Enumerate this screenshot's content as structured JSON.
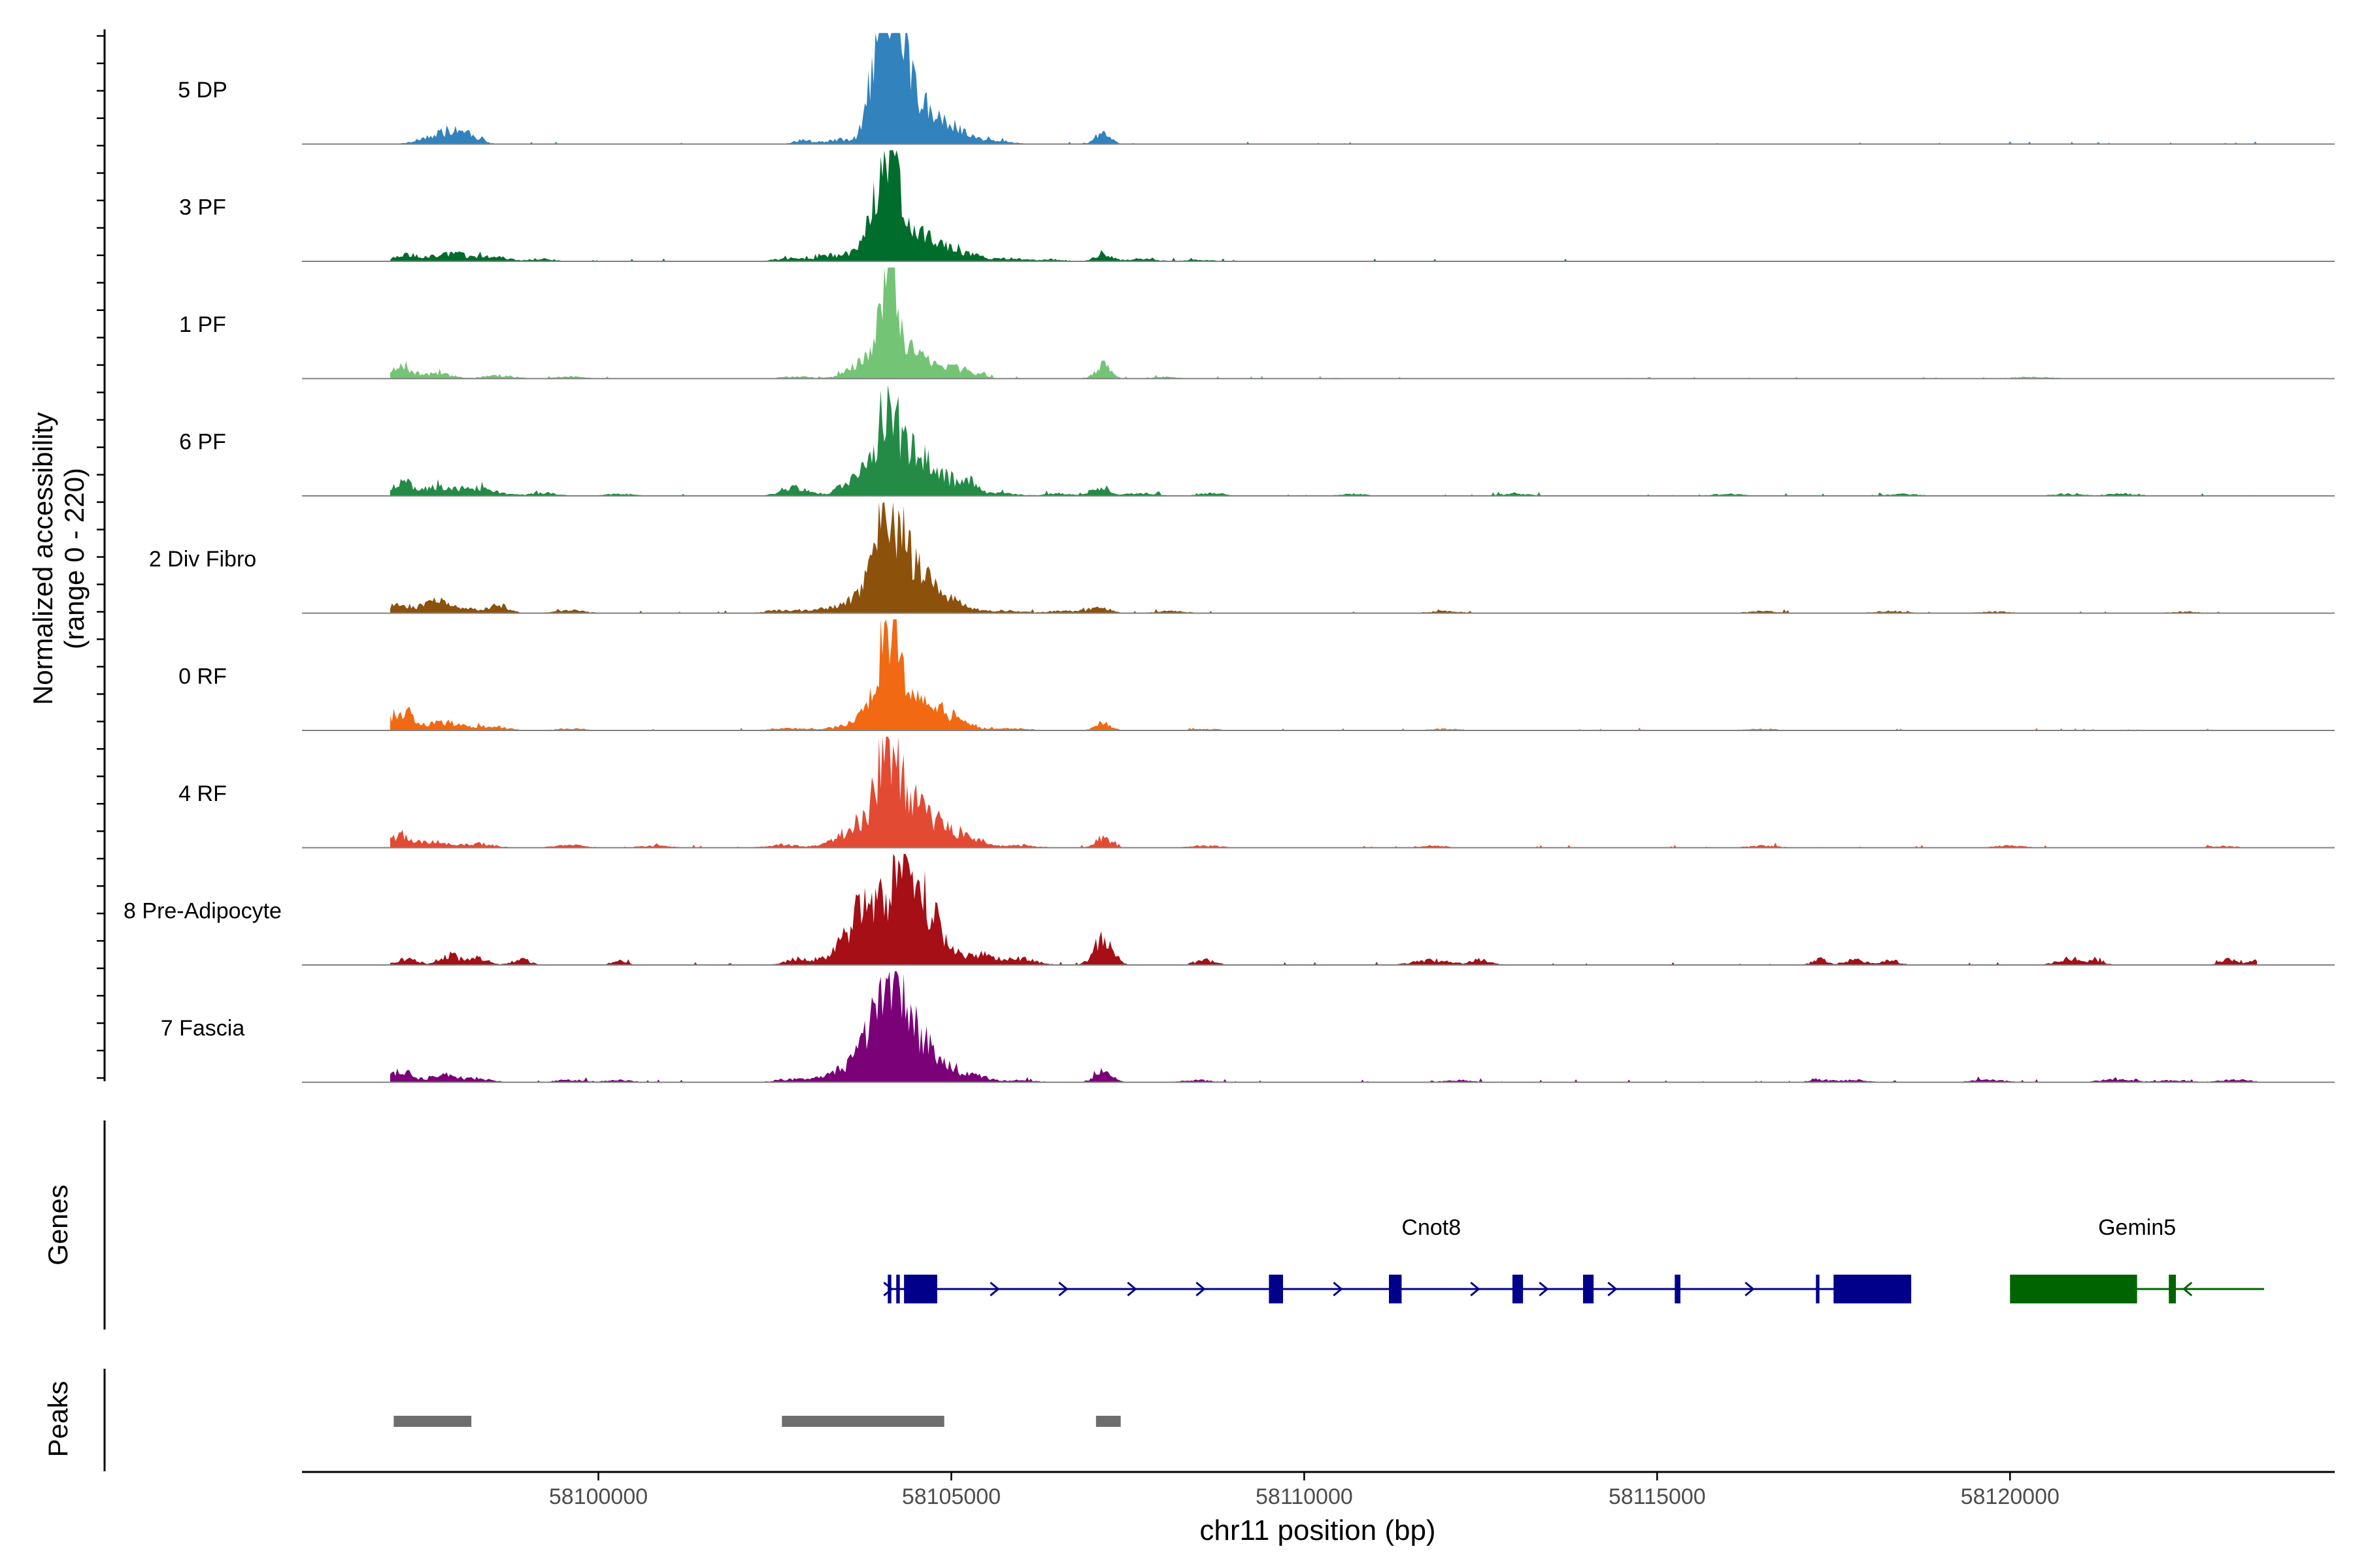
{
  "chart_data": {
    "type": "area",
    "title": "",
    "ylabel_line1": "Normalized accessibility",
    "ylabel_line2": "(range 0 - 220)",
    "ylim": [
      0,
      220
    ],
    "xlabel": "chr11 position (bp)",
    "xlim": [
      58095800,
      58124600
    ],
    "xticks": [
      58100000,
      58105000,
      58110000,
      58115000,
      58120000
    ],
    "xtick_labels": [
      "58100000",
      "58105000",
      "58110000",
      "58115000",
      "58120000"
    ],
    "tracks": [
      {
        "name": "5 DP",
        "color": "#3182bd",
        "peaks": [
          [
            58097800,
            20,
            260
          ],
          [
            58098100,
            14,
            180
          ],
          [
            58102900,
            8,
            120
          ],
          [
            58103400,
            10,
            160
          ],
          [
            58104000,
            140,
            150
          ],
          [
            58104150,
            210,
            170
          ],
          [
            58104450,
            70,
            220
          ],
          [
            58104800,
            35,
            250
          ],
          [
            58105150,
            14,
            200
          ],
          [
            58105700,
            8,
            160
          ],
          [
            58107150,
            24,
            110
          ]
        ]
      },
      {
        "name": "3 PF",
        "color": "#006d2c",
        "peaks": [
          [
            58097300,
            12,
            180
          ],
          [
            58097900,
            16,
            240
          ],
          [
            58098500,
            10,
            200
          ],
          [
            58099200,
            5,
            180
          ],
          [
            58102700,
            6,
            200
          ],
          [
            58103300,
            12,
            220
          ],
          [
            58103900,
            60,
            180
          ],
          [
            58104100,
            175,
            140
          ],
          [
            58104400,
            60,
            200
          ],
          [
            58104750,
            30,
            260
          ],
          [
            58105200,
            12,
            220
          ],
          [
            58105800,
            6,
            200
          ],
          [
            58106400,
            4,
            200
          ],
          [
            58107150,
            14,
            120
          ],
          [
            58107700,
            6,
            180
          ],
          [
            58108500,
            3,
            200
          ]
        ]
      },
      {
        "name": "1 PF",
        "color": "#74c476",
        "peaks": [
          [
            58097200,
            22,
            160
          ],
          [
            58097700,
            10,
            220
          ],
          [
            58098600,
            6,
            220
          ],
          [
            58099600,
            4,
            200
          ],
          [
            58102800,
            4,
            220
          ],
          [
            58103600,
            12,
            180
          ],
          [
            58103900,
            40,
            180
          ],
          [
            58104100,
            185,
            110
          ],
          [
            58104350,
            55,
            180
          ],
          [
            58104750,
            30,
            220
          ],
          [
            58105200,
            14,
            200
          ],
          [
            58107150,
            26,
            110
          ],
          [
            58108000,
            3,
            200
          ],
          [
            58120300,
            3,
            300
          ]
        ]
      },
      {
        "name": "6 PF",
        "color": "#238b45",
        "peaks": [
          [
            58097200,
            26,
            160
          ],
          [
            58097700,
            18,
            220
          ],
          [
            58098300,
            16,
            240
          ],
          [
            58099200,
            6,
            200
          ],
          [
            58100300,
            4,
            200
          ],
          [
            58102800,
            16,
            200
          ],
          [
            58103500,
            16,
            160
          ],
          [
            58103800,
            40,
            180
          ],
          [
            58104100,
            165,
            140
          ],
          [
            58104450,
            80,
            200
          ],
          [
            58104850,
            40,
            160
          ],
          [
            58105250,
            28,
            120
          ],
          [
            58105700,
            6,
            200
          ],
          [
            58106500,
            5,
            200
          ],
          [
            58107100,
            16,
            140
          ],
          [
            58107700,
            6,
            200
          ],
          [
            58108700,
            5,
            200
          ],
          [
            58110700,
            4,
            200
          ],
          [
            58113000,
            4,
            220
          ],
          [
            58116000,
            4,
            200
          ],
          [
            58118500,
            4,
            200
          ],
          [
            58120800,
            4,
            200
          ],
          [
            58121600,
            4,
            240
          ]
        ]
      },
      {
        "name": "2 Div Fibro",
        "color": "#8c510a",
        "peaks": [
          [
            58097200,
            16,
            160
          ],
          [
            58097700,
            24,
            180
          ],
          [
            58098200,
            8,
            200
          ],
          [
            58098600,
            14,
            140
          ],
          [
            58099600,
            6,
            200
          ],
          [
            58102600,
            6,
            220
          ],
          [
            58103200,
            8,
            200
          ],
          [
            58103700,
            30,
            200
          ],
          [
            58104050,
            190,
            150
          ],
          [
            58104300,
            95,
            200
          ],
          [
            58104650,
            50,
            220
          ],
          [
            58105100,
            16,
            220
          ],
          [
            58105800,
            5,
            220
          ],
          [
            58106600,
            5,
            220
          ],
          [
            58107100,
            12,
            140
          ],
          [
            58108100,
            4,
            220
          ],
          [
            58112000,
            4,
            220
          ],
          [
            58116500,
            4,
            220
          ],
          [
            58118300,
            4,
            220
          ],
          [
            58119800,
            3,
            220
          ],
          [
            58122500,
            3,
            220
          ]
        ]
      },
      {
        "name": "0 RF",
        "color": "#f16913",
        "peaks": [
          [
            58097200,
            38,
            150
          ],
          [
            58097800,
            16,
            240
          ],
          [
            58098500,
            8,
            220
          ],
          [
            58099600,
            4,
            200
          ],
          [
            58102700,
            5,
            220
          ],
          [
            58103500,
            8,
            220
          ],
          [
            58103900,
            30,
            200
          ],
          [
            58104120,
            180,
            150
          ],
          [
            58104400,
            55,
            200
          ],
          [
            58104750,
            32,
            220
          ],
          [
            58105150,
            14,
            200
          ],
          [
            58105900,
            4,
            220
          ],
          [
            58107150,
            16,
            110
          ],
          [
            58108600,
            3,
            220
          ],
          [
            58112000,
            3,
            220
          ],
          [
            58116500,
            3,
            220
          ]
        ]
      },
      {
        "name": "4 RF",
        "color": "#e34a33",
        "peaks": [
          [
            58097200,
            26,
            160
          ],
          [
            58097700,
            12,
            200
          ],
          [
            58098300,
            8,
            220
          ],
          [
            58099600,
            5,
            220
          ],
          [
            58100800,
            4,
            220
          ],
          [
            58102600,
            6,
            220
          ],
          [
            58103400,
            14,
            200
          ],
          [
            58103800,
            50,
            200
          ],
          [
            58104100,
            185,
            140
          ],
          [
            58104400,
            80,
            200
          ],
          [
            58104800,
            40,
            220
          ],
          [
            58105250,
            16,
            220
          ],
          [
            58106000,
            5,
            220
          ],
          [
            58107150,
            22,
            110
          ],
          [
            58108600,
            4,
            220
          ],
          [
            58111800,
            4,
            220
          ],
          [
            58116500,
            4,
            220
          ],
          [
            58120000,
            4,
            220
          ],
          [
            58123000,
            3,
            220
          ]
        ]
      },
      {
        "name": "8 Pre-Adipocyte",
        "color": "#a50f15",
        "peaks": [
          [
            58097300,
            12,
            150
          ],
          [
            58097900,
            20,
            130
          ],
          [
            58098300,
            14,
            130
          ],
          [
            58098900,
            12,
            120
          ],
          [
            58100300,
            10,
            100
          ],
          [
            58102800,
            12,
            160
          ],
          [
            58103500,
            40,
            220
          ],
          [
            58103800,
            100,
            180
          ],
          [
            58104200,
            135,
            150
          ],
          [
            58104450,
            120,
            180
          ],
          [
            58104750,
            70,
            200
          ],
          [
            58105400,
            18,
            240
          ],
          [
            58106000,
            12,
            200
          ],
          [
            58107150,
            50,
            130
          ],
          [
            58108600,
            10,
            150
          ],
          [
            58111800,
            10,
            240
          ],
          [
            58112500,
            10,
            150
          ],
          [
            58117300,
            12,
            100
          ],
          [
            58117800,
            10,
            150
          ],
          [
            58118300,
            10,
            120
          ],
          [
            58120800,
            12,
            150
          ],
          [
            58121200,
            10,
            120
          ],
          [
            58123100,
            10,
            120
          ],
          [
            58123500,
            10,
            120
          ]
        ]
      },
      {
        "name": "7 Fascia",
        "color": "#7a0177",
        "peaks": [
          [
            58097200,
            22,
            150
          ],
          [
            58097800,
            14,
            200
          ],
          [
            58098300,
            6,
            220
          ],
          [
            58099600,
            5,
            200
          ],
          [
            58100300,
            4,
            200
          ],
          [
            58102700,
            6,
            200
          ],
          [
            58103300,
            14,
            220
          ],
          [
            58103800,
            60,
            220
          ],
          [
            58104100,
            160,
            160
          ],
          [
            58104400,
            100,
            200
          ],
          [
            58104800,
            40,
            200
          ],
          [
            58105300,
            14,
            200
          ],
          [
            58106000,
            4,
            220
          ],
          [
            58107150,
            22,
            120
          ],
          [
            58108500,
            4,
            220
          ],
          [
            58112200,
            4,
            220
          ],
          [
            58117300,
            6,
            140
          ],
          [
            58117800,
            5,
            180
          ],
          [
            58119700,
            5,
            220
          ],
          [
            58121500,
            6,
            220
          ],
          [
            58122300,
            4,
            220
          ],
          [
            58123200,
            5,
            220
          ]
        ]
      }
    ],
    "genes_label": "Genes",
    "genes": [
      {
        "name": "Cnot8",
        "strand": "+",
        "color": "#00008b",
        "start": 58104100,
        "end": 58118600,
        "exons": [
          [
            58104100,
            58104150
          ],
          [
            58104220,
            58104270
          ],
          [
            58104330,
            58104800
          ],
          [
            58109500,
            58109700
          ],
          [
            58111200,
            58111380
          ],
          [
            58112950,
            58113100
          ],
          [
            58113950,
            58114100
          ],
          [
            58115250,
            58115330
          ],
          [
            58117250,
            58117300
          ],
          [
            58117500,
            58118600
          ]
        ]
      },
      {
        "name": "Gemin5",
        "strand": "-",
        "color": "#006400",
        "start": 58120000,
        "end": 58123600,
        "exons": [
          [
            58120000,
            58121800
          ],
          [
            58122250,
            58122350
          ]
        ]
      }
    ],
    "peaks_label": "Peaks",
    "peak_regions": [
      [
        58097100,
        58098200
      ],
      [
        58102600,
        58104900
      ],
      [
        58107050,
        58107400
      ]
    ]
  }
}
